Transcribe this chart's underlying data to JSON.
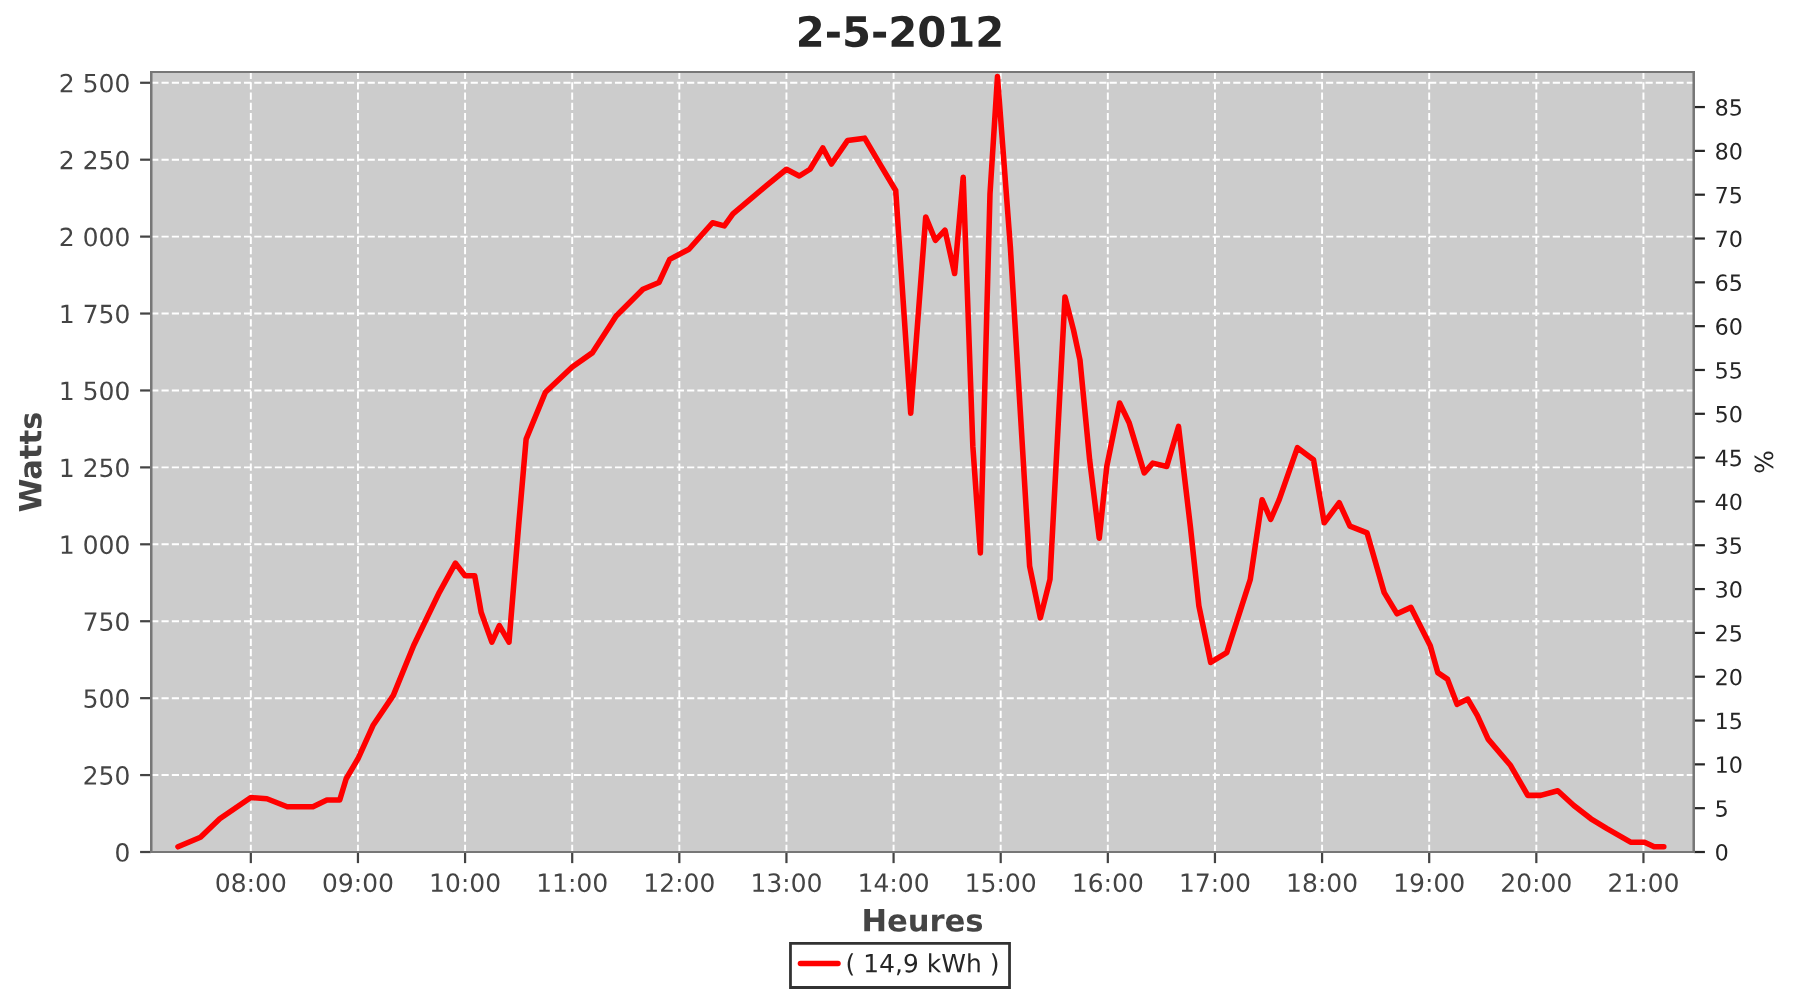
{
  "chart_data": {
    "type": "line",
    "title": "2-5-2012",
    "xlabel": "Heures",
    "ylabel": "Watts",
    "y2label": "%",
    "x": [
      7.32,
      7.53,
      7.71,
      8.0,
      8.15,
      8.34,
      8.58,
      8.71,
      8.83,
      8.89,
      9.0,
      9.14,
      9.33,
      9.52,
      9.64,
      9.76,
      9.91,
      10.0,
      10.09,
      10.15,
      10.25,
      10.32,
      10.41,
      10.5,
      10.57,
      10.75,
      11.0,
      11.19,
      11.41,
      11.66,
      11.81,
      11.91,
      12.09,
      12.31,
      12.42,
      12.5,
      12.81,
      13.0,
      13.12,
      13.22,
      13.34,
      13.42,
      13.57,
      13.73,
      13.87,
      14.02,
      14.16,
      14.3,
      14.39,
      14.48,
      14.57,
      14.65,
      14.74,
      14.81,
      14.9,
      14.97,
      15.09,
      15.18,
      15.27,
      15.37,
      15.46,
      15.6,
      15.68,
      15.74,
      15.83,
      15.92,
      15.99,
      16.11,
      16.2,
      16.34,
      16.42,
      16.55,
      16.66,
      16.77,
      16.85,
      16.96,
      17.11,
      17.27,
      17.33,
      17.44,
      17.52,
      17.6,
      17.77,
      17.92,
      18.02,
      18.16,
      18.26,
      18.42,
      18.58,
      18.7,
      18.83,
      19.01,
      19.08,
      19.17,
      19.26,
      19.36,
      19.45,
      19.55,
      19.76,
      19.92,
      20.04,
      20.2,
      20.35,
      20.51,
      20.66,
      20.88,
      21.01,
      21.1,
      21.19
    ],
    "series": [
      {
        "name": "( 14,9 kWh )",
        "color": "#ff0000",
        "values": [
          17,
          48,
          108,
          177,
          173,
          147,
          147,
          169,
          169,
          238,
          303,
          411,
          509,
          671,
          758,
          844,
          939,
          898,
          898,
          779,
          682,
          736,
          682,
          1061,
          1342,
          1494,
          1576,
          1623,
          1742,
          1829,
          1851,
          1926,
          1959,
          2045,
          2035,
          2074,
          2165,
          2219,
          2197,
          2219,
          2288,
          2236,
          2312,
          2320,
          2237,
          2150,
          1426,
          2064,
          1988,
          2021,
          1880,
          2193,
          1318,
          972,
          2139,
          2520,
          1967,
          1448,
          929,
          761,
          886,
          1804,
          1696,
          1599,
          1275,
          1020,
          1253,
          1459,
          1394,
          1232,
          1264,
          1253,
          1383,
          1059,
          800,
          616,
          648,
          821,
          886,
          1145,
          1081,
          1145,
          1314,
          1275,
          1070,
          1135,
          1059,
          1037,
          843,
          774,
          795,
          670,
          583,
          562,
          480,
          497,
          443,
          367,
          281,
          184,
          184,
          199,
          151,
          108,
          76,
          32,
          32,
          17,
          17
        ]
      }
    ],
    "xlim": [
      7.07,
      21.47
    ],
    "xticks": [
      {
        "value": 8,
        "label": "08:00"
      },
      {
        "value": 9,
        "label": "09:00"
      },
      {
        "value": 10,
        "label": "10:00"
      },
      {
        "value": 11,
        "label": "11:00"
      },
      {
        "value": 12,
        "label": "12:00"
      },
      {
        "value": 13,
        "label": "13:00"
      },
      {
        "value": 14,
        "label": "14:00"
      },
      {
        "value": 15,
        "label": "15:00"
      },
      {
        "value": 16,
        "label": "16:00"
      },
      {
        "value": 17,
        "label": "17:00"
      },
      {
        "value": 18,
        "label": "18:00"
      },
      {
        "value": 19,
        "label": "19:00"
      },
      {
        "value": 20,
        "label": "20:00"
      },
      {
        "value": 21,
        "label": "21:00"
      }
    ],
    "ylim": [
      0,
      2535
    ],
    "yticks": [
      0,
      250,
      500,
      750,
      {
        "value": 1000,
        "label": "1 000"
      },
      {
        "value": 1250,
        "label": "1 250"
      },
      {
        "value": 1500,
        "label": "1 500"
      },
      {
        "value": 1750,
        "label": "1 750"
      },
      {
        "value": 2000,
        "label": "2 000"
      },
      {
        "value": 2250,
        "label": "2 250"
      },
      {
        "value": 2500,
        "label": "2 500"
      }
    ],
    "y2lim": [
      0,
      89
    ],
    "y2ticks": [
      0,
      5,
      10,
      15,
      20,
      25,
      30,
      35,
      40,
      45,
      50,
      55,
      60,
      65,
      70,
      75,
      80,
      85
    ],
    "grid": true,
    "legend": "bottom",
    "marker": "none",
    "line_style": "solid"
  }
}
